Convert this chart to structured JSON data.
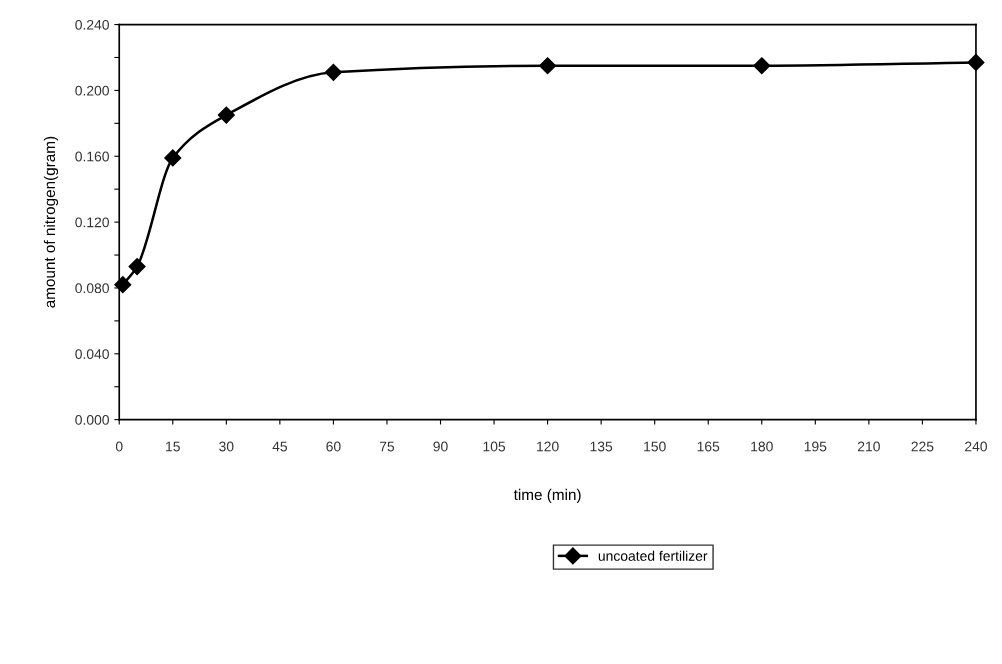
{
  "chart_data": {
    "type": "line",
    "xlabel": "time (min)",
    "ylabel": "amount of nitrogen(gram)",
    "x": [
      1,
      5,
      15,
      30,
      60,
      120,
      180,
      240
    ],
    "series": [
      {
        "name": "uncoated fertilizer",
        "color": "#000000",
        "values": [
          0.082,
          0.093,
          0.159,
          0.185,
          0.211,
          0.215,
          0.215,
          0.217
        ]
      }
    ],
    "xlim": [
      0,
      240
    ],
    "xticks": [
      0,
      15,
      30,
      45,
      60,
      75,
      90,
      105,
      120,
      135,
      150,
      165,
      180,
      195,
      210,
      225,
      240
    ],
    "ylim": [
      0,
      0.24
    ],
    "yticks": [
      {
        "value": 0,
        "label": "0.000"
      },
      {
        "value": 0.02,
        "label": null
      },
      {
        "value": 0.04,
        "label": "0.040"
      },
      {
        "value": 0.06,
        "label": null
      },
      {
        "value": 0.08,
        "label": "0.080"
      },
      {
        "value": 0.1,
        "label": null
      },
      {
        "value": 0.12,
        "label": "0.120"
      },
      {
        "value": 0.14,
        "label": null
      },
      {
        "value": 0.16,
        "label": "0.160"
      },
      {
        "value": 0.18,
        "label": null
      },
      {
        "value": 0.2,
        "label": "0.200"
      },
      {
        "value": 0.22,
        "label": null
      },
      {
        "value": 0.24,
        "label": "0.240"
      }
    ],
    "marker": "diamond",
    "line_style": "solid",
    "grid": false,
    "legend": "bottom"
  }
}
